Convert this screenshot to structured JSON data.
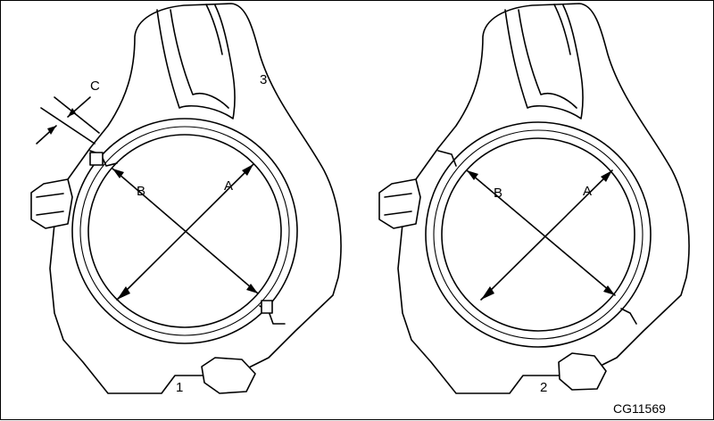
{
  "figure": {
    "callouts": {
      "gap_label": "C",
      "left_number": "1",
      "right_number": "2",
      "rod_number": "3"
    },
    "left_view": {
      "diameter_a": "A",
      "diameter_b": "B"
    },
    "right_view": {
      "diameter_a": "A",
      "diameter_b": "B"
    },
    "figure_code": "CG11569"
  }
}
